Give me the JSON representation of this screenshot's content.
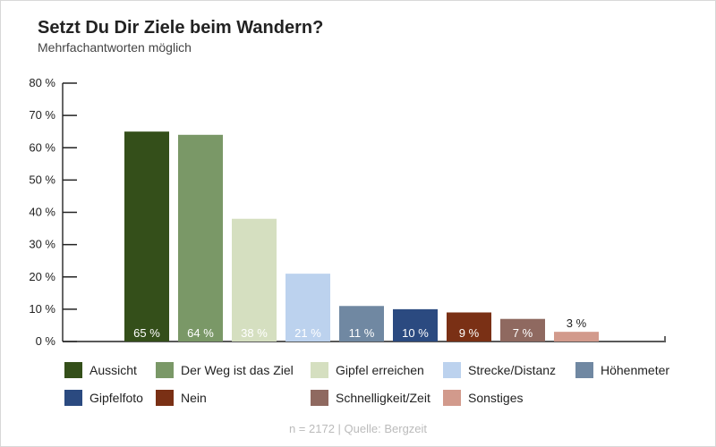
{
  "chart_data": {
    "type": "bar",
    "title": "Setzt Du Dir Ziele beim Wandern?",
    "subtitle": "Mehrfachantworten möglich",
    "categories": [
      "Aussicht",
      "Der Weg ist das Ziel",
      "Gipfel erreichen",
      "Strecke/Distanz",
      "Höhenmeter",
      "Gipfelfoto",
      "Nein",
      "Schnelligkeit/Zeit",
      "Sonstiges"
    ],
    "values": [
      65,
      64,
      38,
      21,
      11,
      10,
      9,
      7,
      3
    ],
    "data_labels": [
      "65 %",
      "64 %",
      "38 %",
      "21 %",
      "11 %",
      "10 %",
      "9 %",
      "7 %",
      "3 %"
    ],
    "colors": [
      "#344f1a",
      "#7a9867",
      "#d5dfc0",
      "#bcd2ee",
      "#7088a2",
      "#2b4a80",
      "#7a3015",
      "#8f6960",
      "#d29a8c"
    ],
    "ylim": [
      0,
      80
    ],
    "yticks": [
      "0 %",
      "10 %",
      "20 %",
      "30 %",
      "40 %",
      "50 %",
      "60 %",
      "70 %",
      "80 %"
    ],
    "grid": false,
    "legend_position": "bottom",
    "source": "n = 2172 | Quelle: Bergzeit"
  }
}
